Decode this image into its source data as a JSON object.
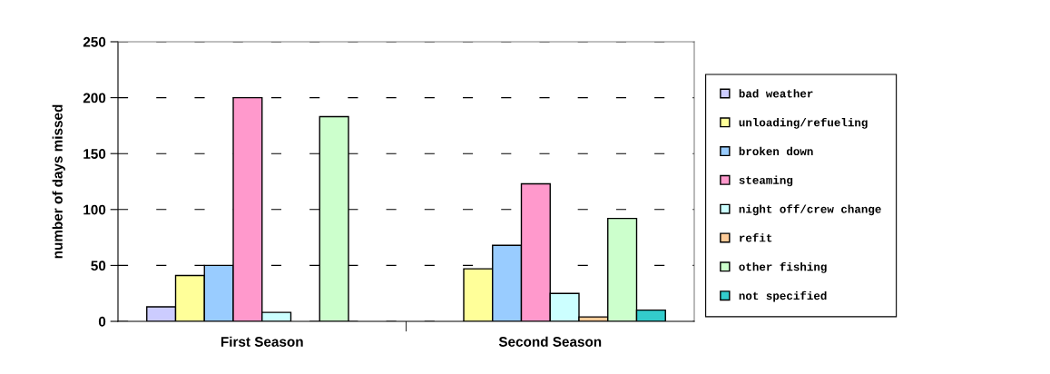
{
  "chart_data": {
    "type": "bar",
    "ylabel": "number of days missed",
    "categories": [
      "First Season",
      "Second Season"
    ],
    "series": [
      {
        "name": "bad weather",
        "color": "#ccccff",
        "values": [
          13,
          null
        ]
      },
      {
        "name": "unloading/refueling",
        "color": "#ffff99",
        "values": [
          41,
          47
        ]
      },
      {
        "name": "broken down",
        "color": "#99ccff",
        "values": [
          50,
          68
        ]
      },
      {
        "name": "steaming",
        "color": "#ff99cc",
        "values": [
          200,
          123
        ]
      },
      {
        "name": "night off/crew change",
        "color": "#ccffff",
        "values": [
          8,
          25
        ]
      },
      {
        "name": "refit",
        "color": "#ffcc99",
        "values": [
          null,
          4
        ]
      },
      {
        "name": "other fishing",
        "color": "#ccffcc",
        "values": [
          183,
          92
        ]
      },
      {
        "name": "not specified",
        "color": "#33cccc",
        "values": [
          null,
          10
        ]
      }
    ],
    "ylim": [
      0,
      250
    ],
    "yticks": [
      0,
      50,
      100,
      150,
      200,
      250
    ],
    "grid": "y",
    "line_style": "dashed",
    "legend": "right"
  }
}
